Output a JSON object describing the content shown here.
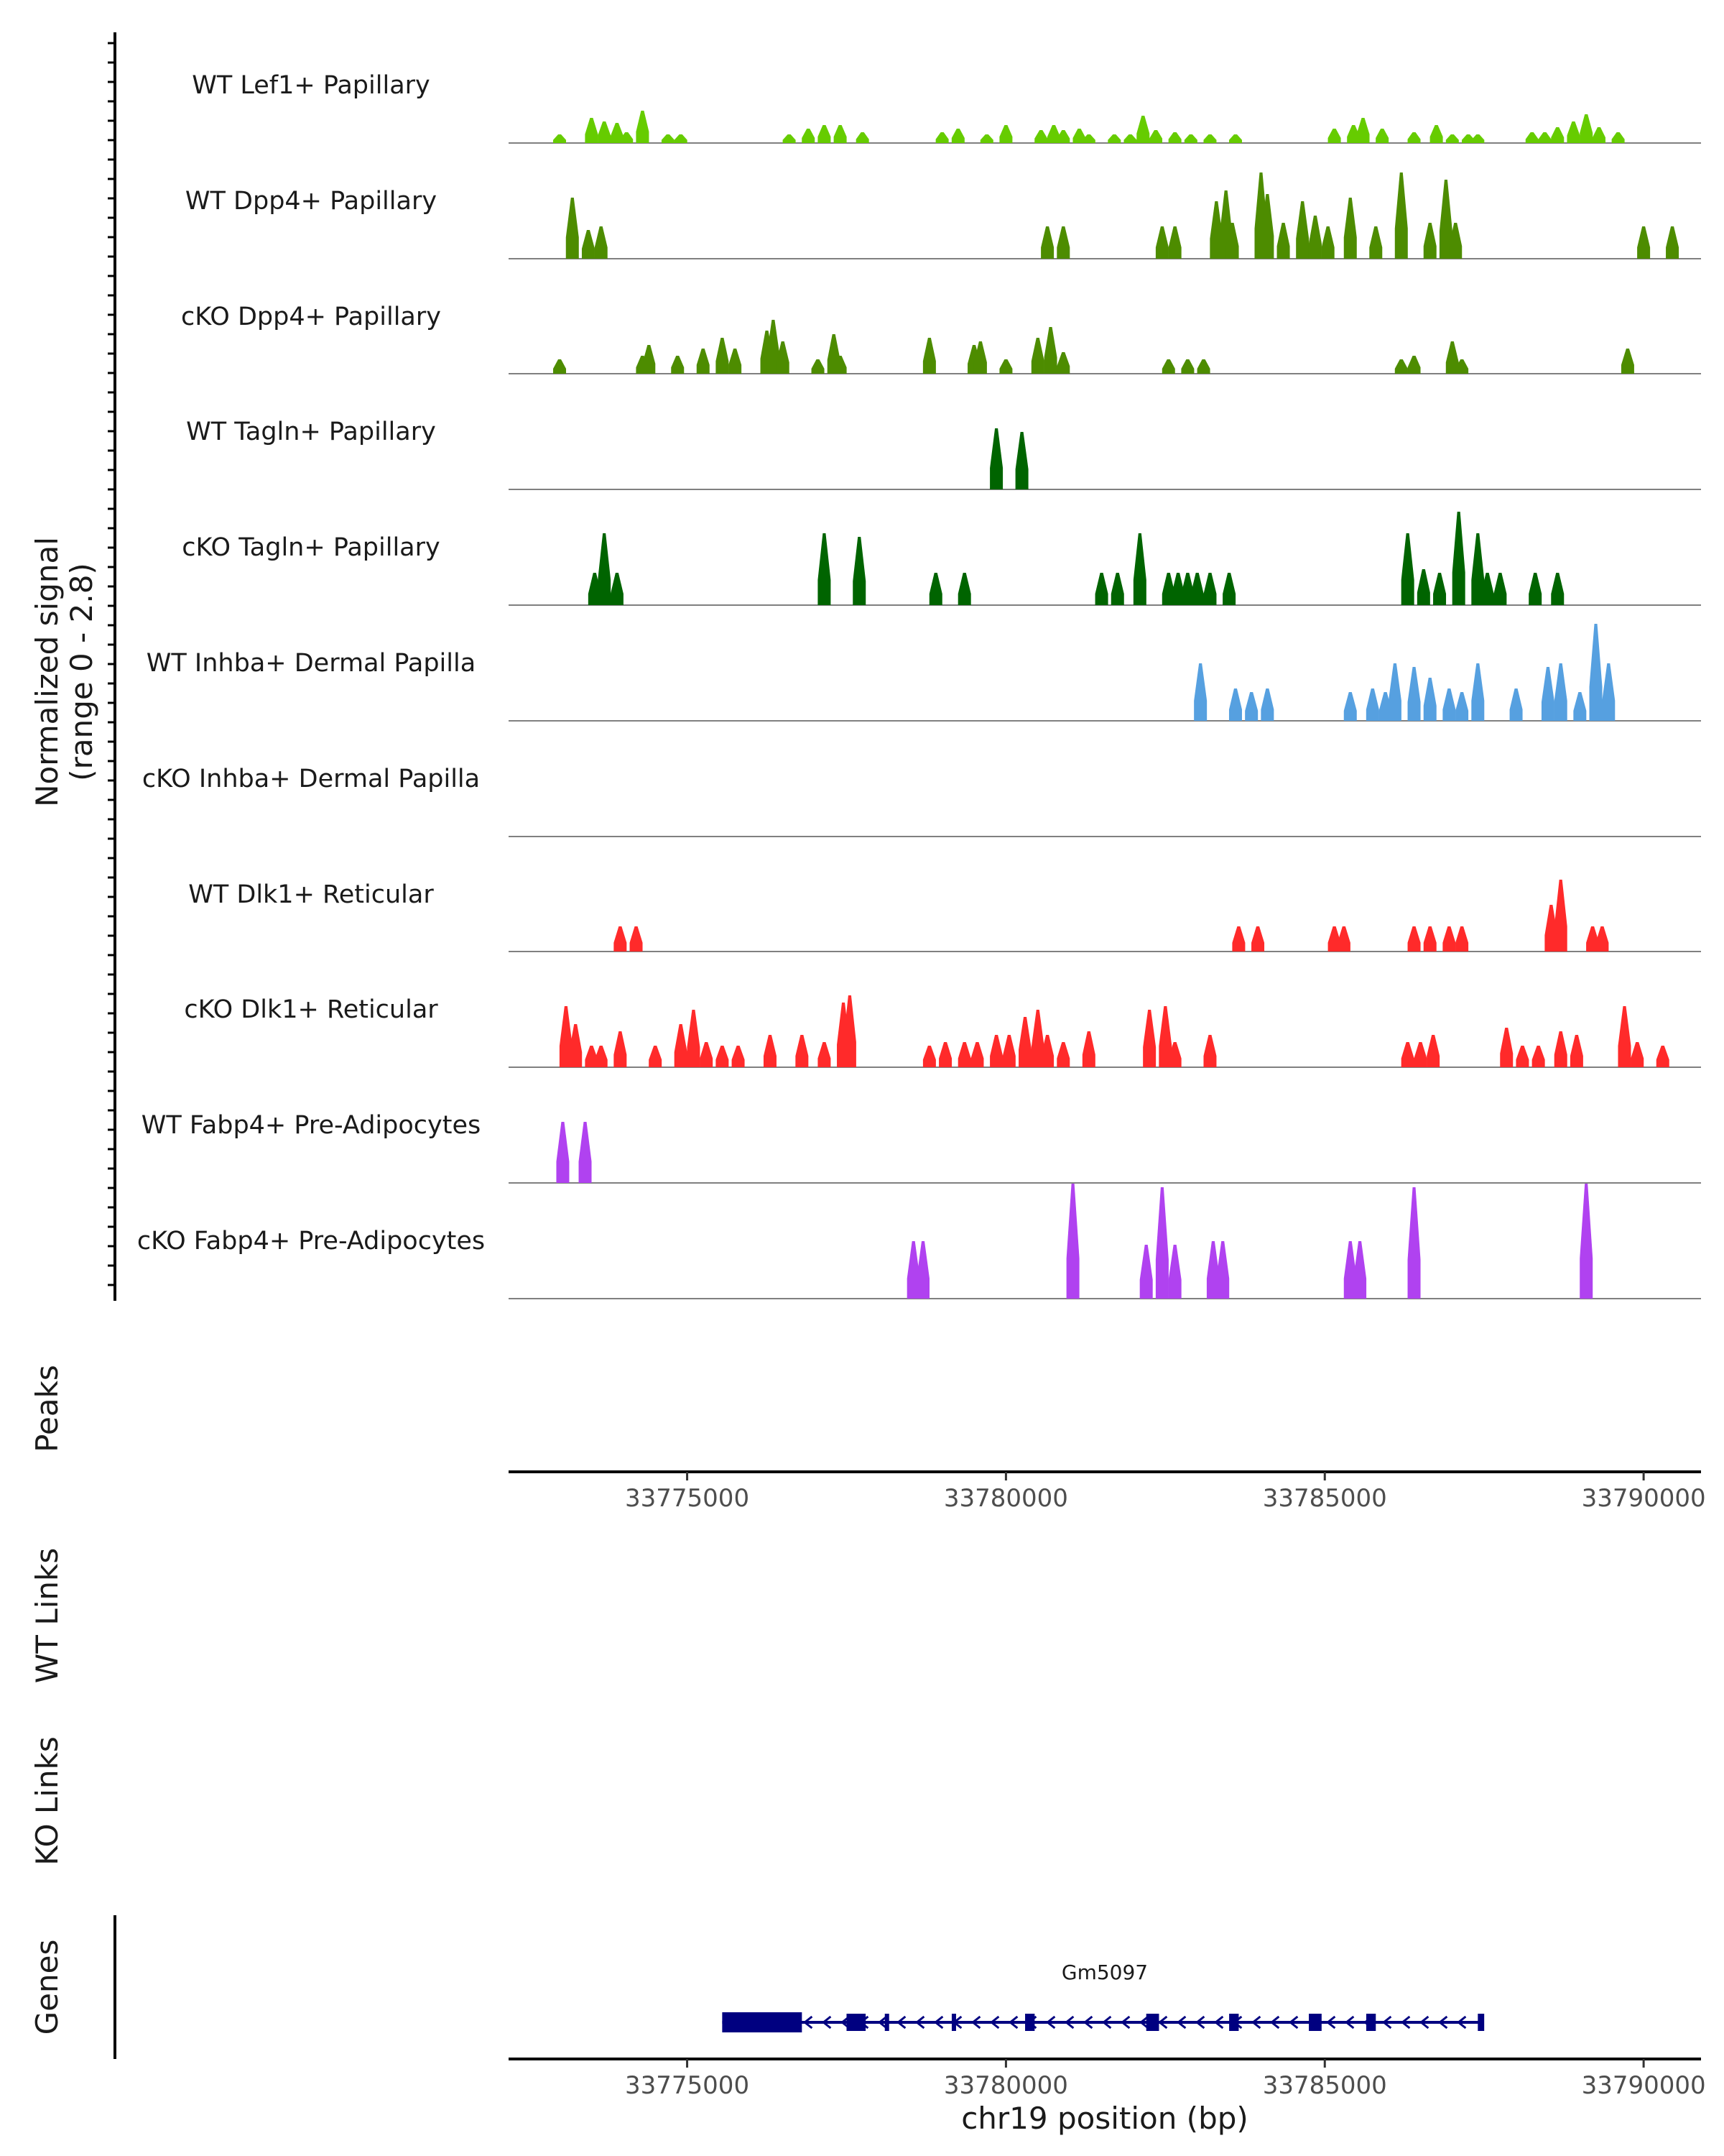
{
  "chart_data": {
    "type": "area",
    "title": "",
    "signal_axis": {
      "label_line1": "Normalized signal",
      "label_line2": "(range 0 - 2.8)",
      "range": [
        0,
        2.8
      ]
    },
    "xlim": [
      33772200,
      33790900
    ],
    "x_ticks": [
      {
        "value": 33775000,
        "label": "33775000"
      },
      {
        "value": 33780000,
        "label": "33780000"
      },
      {
        "value": 33785000,
        "label": "33785000"
      },
      {
        "value": 33790000,
        "label": "33790000"
      }
    ],
    "xlabel": "chr19 position (bp)",
    "tracks": [
      {
        "name": "WT Lef1+ Papillary",
        "color": "#66cc00",
        "peaks": [
          [
            33773000,
            0.12
          ],
          [
            33773500,
            0.35
          ],
          [
            33773700,
            0.3
          ],
          [
            33773900,
            0.28
          ],
          [
            33774050,
            0.15
          ],
          [
            33774300,
            0.45
          ],
          [
            33774700,
            0.12
          ],
          [
            33774900,
            0.12
          ],
          [
            33776600,
            0.12
          ],
          [
            33776900,
            0.2
          ],
          [
            33777150,
            0.25
          ],
          [
            33777400,
            0.25
          ],
          [
            33777750,
            0.15
          ],
          [
            33779000,
            0.15
          ],
          [
            33779250,
            0.2
          ],
          [
            33779700,
            0.12
          ],
          [
            33780000,
            0.25
          ],
          [
            33780550,
            0.18
          ],
          [
            33780750,
            0.25
          ],
          [
            33780900,
            0.18
          ],
          [
            33781150,
            0.2
          ],
          [
            33781300,
            0.12
          ],
          [
            33781700,
            0.12
          ],
          [
            33781950,
            0.12
          ],
          [
            33782150,
            0.38
          ],
          [
            33782350,
            0.18
          ],
          [
            33782650,
            0.15
          ],
          [
            33782900,
            0.12
          ],
          [
            33783200,
            0.12
          ],
          [
            33783600,
            0.12
          ],
          [
            33785150,
            0.2
          ],
          [
            33785450,
            0.25
          ],
          [
            33785600,
            0.35
          ],
          [
            33785900,
            0.2
          ],
          [
            33786400,
            0.15
          ],
          [
            33786750,
            0.25
          ],
          [
            33787000,
            0.12
          ],
          [
            33787250,
            0.12
          ],
          [
            33787400,
            0.12
          ],
          [
            33788250,
            0.15
          ],
          [
            33788450,
            0.15
          ],
          [
            33788650,
            0.22
          ],
          [
            33788900,
            0.3
          ],
          [
            33789100,
            0.4
          ],
          [
            33789300,
            0.22
          ],
          [
            33789600,
            0.15
          ]
        ]
      },
      {
        "name": "WT Dpp4+ Papillary",
        "color": "#4d8c00",
        "peaks": [
          [
            33773200,
            0.85
          ],
          [
            33773450,
            0.4
          ],
          [
            33773650,
            0.45
          ],
          [
            33780650,
            0.45
          ],
          [
            33780900,
            0.45
          ],
          [
            33782450,
            0.45
          ],
          [
            33782650,
            0.45
          ],
          [
            33783300,
            0.8
          ],
          [
            33783450,
            0.95
          ],
          [
            33783550,
            0.5
          ],
          [
            33784000,
            1.2
          ],
          [
            33784100,
            0.9
          ],
          [
            33784350,
            0.5
          ],
          [
            33784650,
            0.8
          ],
          [
            33784850,
            0.6
          ],
          [
            33785050,
            0.45
          ],
          [
            33785400,
            0.85
          ],
          [
            33785800,
            0.45
          ],
          [
            33786200,
            1.2
          ],
          [
            33786650,
            0.5
          ],
          [
            33786900,
            1.1
          ],
          [
            33787050,
            0.5
          ],
          [
            33790000,
            0.45
          ],
          [
            33790450,
            0.45
          ]
        ]
      },
      {
        "name": "cKO Dpp4+ Papillary",
        "color": "#4d8c00",
        "peaks": [
          [
            33773000,
            0.2
          ],
          [
            33774300,
            0.25
          ],
          [
            33774400,
            0.4
          ],
          [
            33774850,
            0.25
          ],
          [
            33775250,
            0.35
          ],
          [
            33775550,
            0.5
          ],
          [
            33775750,
            0.35
          ],
          [
            33776250,
            0.6
          ],
          [
            33776350,
            0.75
          ],
          [
            33776500,
            0.45
          ],
          [
            33777050,
            0.2
          ],
          [
            33777300,
            0.55
          ],
          [
            33777400,
            0.25
          ],
          [
            33778800,
            0.5
          ],
          [
            33779500,
            0.4
          ],
          [
            33779600,
            0.45
          ],
          [
            33780000,
            0.2
          ],
          [
            33780500,
            0.5
          ],
          [
            33780700,
            0.65
          ],
          [
            33780900,
            0.3
          ],
          [
            33782550,
            0.2
          ],
          [
            33782850,
            0.2
          ],
          [
            33783100,
            0.2
          ],
          [
            33786200,
            0.2
          ],
          [
            33786400,
            0.25
          ],
          [
            33787000,
            0.45
          ],
          [
            33787150,
            0.2
          ],
          [
            33789750,
            0.35
          ]
        ]
      },
      {
        "name": "WT Tagln+ Papillary",
        "color": "#006400",
        "peaks": [
          [
            33779850,
            0.85
          ],
          [
            33780250,
            0.8
          ]
        ]
      },
      {
        "name": "cKO Tagln+ Papillary",
        "color": "#006400",
        "peaks": [
          [
            33773550,
            0.45
          ],
          [
            33773700,
            1.0
          ],
          [
            33773900,
            0.45
          ],
          [
            33777150,
            1.0
          ],
          [
            33777700,
            0.95
          ],
          [
            33778900,
            0.45
          ],
          [
            33779350,
            0.45
          ],
          [
            33781500,
            0.45
          ],
          [
            33781750,
            0.45
          ],
          [
            33782100,
            1.0
          ],
          [
            33782550,
            0.45
          ],
          [
            33782700,
            0.45
          ],
          [
            33782850,
            0.45
          ],
          [
            33783000,
            0.45
          ],
          [
            33783200,
            0.45
          ],
          [
            33783500,
            0.45
          ],
          [
            33786300,
            1.0
          ],
          [
            33786550,
            0.5
          ],
          [
            33786800,
            0.45
          ],
          [
            33787100,
            1.3
          ],
          [
            33787400,
            1.0
          ],
          [
            33787550,
            0.45
          ],
          [
            33787750,
            0.45
          ],
          [
            33788300,
            0.45
          ],
          [
            33788650,
            0.45
          ]
        ]
      },
      {
        "name": "WT Inhba+ Dermal Papilla",
        "color": "#56a0e0",
        "peaks": [
          [
            33783050,
            0.8
          ],
          [
            33783600,
            0.45
          ],
          [
            33783850,
            0.4
          ],
          [
            33784100,
            0.45
          ],
          [
            33785400,
            0.4
          ],
          [
            33785750,
            0.45
          ],
          [
            33785950,
            0.4
          ],
          [
            33786100,
            0.8
          ],
          [
            33786400,
            0.75
          ],
          [
            33786650,
            0.6
          ],
          [
            33786950,
            0.45
          ],
          [
            33787150,
            0.4
          ],
          [
            33787400,
            0.8
          ],
          [
            33788000,
            0.45
          ],
          [
            33788500,
            0.75
          ],
          [
            33788700,
            0.8
          ],
          [
            33789000,
            0.4
          ],
          [
            33789250,
            1.35
          ],
          [
            33789450,
            0.8
          ]
        ]
      },
      {
        "name": "cKO Inhba+ Dermal Papilla",
        "color": "#56a0e0",
        "peaks": []
      },
      {
        "name": "WT Dlk1+ Reticular",
        "color": "#ff2a2a",
        "peaks": [
          [
            33773950,
            0.35
          ],
          [
            33774200,
            0.35
          ],
          [
            33783650,
            0.35
          ],
          [
            33783950,
            0.35
          ],
          [
            33785150,
            0.35
          ],
          [
            33785300,
            0.35
          ],
          [
            33786400,
            0.35
          ],
          [
            33786650,
            0.35
          ],
          [
            33786950,
            0.35
          ],
          [
            33787150,
            0.35
          ],
          [
            33788550,
            0.65
          ],
          [
            33788700,
            1.0
          ],
          [
            33789200,
            0.35
          ],
          [
            33789350,
            0.35
          ]
        ]
      },
      {
        "name": "cKO Dlk1+ Reticular",
        "color": "#ff2a2a",
        "peaks": [
          [
            33773100,
            0.85
          ],
          [
            33773250,
            0.6
          ],
          [
            33773500,
            0.3
          ],
          [
            33773650,
            0.3
          ],
          [
            33773950,
            0.5
          ],
          [
            33774500,
            0.3
          ],
          [
            33774900,
            0.6
          ],
          [
            33775100,
            0.8
          ],
          [
            33775300,
            0.35
          ],
          [
            33775550,
            0.3
          ],
          [
            33775800,
            0.3
          ],
          [
            33776300,
            0.45
          ],
          [
            33776800,
            0.45
          ],
          [
            33777150,
            0.35
          ],
          [
            33777450,
            0.9
          ],
          [
            33777550,
            1.0
          ],
          [
            33778800,
            0.3
          ],
          [
            33779050,
            0.35
          ],
          [
            33779350,
            0.35
          ],
          [
            33779550,
            0.35
          ],
          [
            33779850,
            0.45
          ],
          [
            33780050,
            0.45
          ],
          [
            33780300,
            0.7
          ],
          [
            33780500,
            0.8
          ],
          [
            33780650,
            0.45
          ],
          [
            33780900,
            0.35
          ],
          [
            33781300,
            0.5
          ],
          [
            33782250,
            0.8
          ],
          [
            33782500,
            0.85
          ],
          [
            33782650,
            0.35
          ],
          [
            33783200,
            0.45
          ],
          [
            33786300,
            0.35
          ],
          [
            33786500,
            0.35
          ],
          [
            33786700,
            0.45
          ],
          [
            33787850,
            0.55
          ],
          [
            33788100,
            0.3
          ],
          [
            33788350,
            0.3
          ],
          [
            33788700,
            0.5
          ],
          [
            33788950,
            0.45
          ],
          [
            33789700,
            0.85
          ],
          [
            33789900,
            0.35
          ],
          [
            33790300,
            0.3
          ]
        ]
      },
      {
        "name": "WT Fabp4+ Pre-Adipocytes",
        "color": "#b042f0",
        "peaks": [
          [
            33773050,
            0.85
          ],
          [
            33773400,
            0.85
          ]
        ]
      },
      {
        "name": "cKO Fabp4+ Pre-Adipocytes",
        "color": "#b042f0",
        "peaks": [
          [
            33778550,
            0.8
          ],
          [
            33778700,
            0.8
          ],
          [
            33781050,
            1.6
          ],
          [
            33782200,
            0.75
          ],
          [
            33782450,
            1.55
          ],
          [
            33782650,
            0.75
          ],
          [
            33783250,
            0.8
          ],
          [
            33783400,
            0.8
          ],
          [
            33785400,
            0.8
          ],
          [
            33785550,
            0.8
          ],
          [
            33786400,
            1.55
          ],
          [
            33789100,
            1.6
          ]
        ]
      }
    ],
    "side_labels": {
      "peaks": "Peaks",
      "wt_links": "WT Links",
      "ko_links": "KO Links",
      "genes": "Genes"
    },
    "gene": {
      "name": "Gm5097",
      "color": "#000080",
      "start": 33775550,
      "end": 33787450,
      "strand": "-",
      "exons": [
        [
          33775550,
          33776800
        ],
        [
          33777500,
          33777800
        ],
        [
          33778100,
          33778150
        ],
        [
          33779150,
          33779200
        ],
        [
          33780300,
          33780450
        ],
        [
          33782200,
          33782400
        ],
        [
          33783500,
          33783650
        ],
        [
          33784750,
          33784950
        ],
        [
          33785650,
          33785800
        ],
        [
          33787400,
          33787500
        ]
      ]
    }
  }
}
